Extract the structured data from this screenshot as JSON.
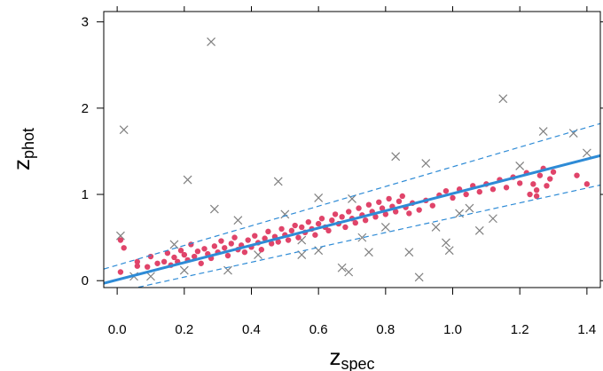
{
  "chart_data": {
    "type": "scatter",
    "title": "",
    "xlabel": {
      "main": "z",
      "sub": "spec"
    },
    "ylabel": {
      "main": "z",
      "sub": "phot"
    },
    "xlim": [
      -0.04,
      1.44
    ],
    "ylim": [
      -0.08,
      3.12
    ],
    "x_ticks": [
      0.0,
      0.2,
      0.4,
      0.6,
      0.8,
      1.0,
      1.2,
      1.4
    ],
    "x_tick_labels": [
      "0.0",
      "0.2",
      "0.4",
      "0.6",
      "0.8",
      "1.0",
      "1.2",
      "1.4"
    ],
    "y_ticks": [
      0,
      1,
      2,
      3
    ],
    "y_tick_labels": [
      "0",
      "1",
      "2",
      "3"
    ],
    "grid": false,
    "legend": "none",
    "colors": {
      "points": "#e0446a",
      "crosses": "#808080",
      "fit": "#2e8bd6"
    },
    "fit_line": {
      "intercept": 0.01,
      "slope": 1.0
    },
    "dashed_envelope": [
      {
        "intercept": 0.18,
        "slope": 1.14
      },
      {
        "intercept": -0.13,
        "slope": 0.86
      }
    ],
    "series": [
      {
        "marker": "circle",
        "points": [
          [
            0.01,
            0.47
          ],
          [
            0.02,
            0.38
          ],
          [
            0.01,
            0.1
          ],
          [
            0.06,
            0.22
          ],
          [
            0.06,
            0.17
          ],
          [
            0.09,
            0.16
          ],
          [
            0.1,
            0.28
          ],
          [
            0.12,
            0.2
          ],
          [
            0.14,
            0.22
          ],
          [
            0.15,
            0.32
          ],
          [
            0.16,
            0.18
          ],
          [
            0.17,
            0.27
          ],
          [
            0.18,
            0.22
          ],
          [
            0.19,
            0.35
          ],
          [
            0.2,
            0.3
          ],
          [
            0.21,
            0.24
          ],
          [
            0.22,
            0.42
          ],
          [
            0.23,
            0.28
          ],
          [
            0.24,
            0.34
          ],
          [
            0.25,
            0.2
          ],
          [
            0.26,
            0.37
          ],
          [
            0.27,
            0.31
          ],
          [
            0.28,
            0.26
          ],
          [
            0.29,
            0.4
          ],
          [
            0.3,
            0.33
          ],
          [
            0.31,
            0.46
          ],
          [
            0.32,
            0.38
          ],
          [
            0.33,
            0.29
          ],
          [
            0.34,
            0.43
          ],
          [
            0.35,
            0.5
          ],
          [
            0.36,
            0.36
          ],
          [
            0.37,
            0.41
          ],
          [
            0.38,
            0.33
          ],
          [
            0.39,
            0.47
          ],
          [
            0.4,
            0.39
          ],
          [
            0.41,
            0.52
          ],
          [
            0.42,
            0.44
          ],
          [
            0.43,
            0.36
          ],
          [
            0.44,
            0.49
          ],
          [
            0.45,
            0.57
          ],
          [
            0.46,
            0.43
          ],
          [
            0.47,
            0.51
          ],
          [
            0.48,
            0.45
          ],
          [
            0.49,
            0.6
          ],
          [
            0.5,
            0.53
          ],
          [
            0.51,
            0.47
          ],
          [
            0.52,
            0.58
          ],
          [
            0.53,
            0.64
          ],
          [
            0.54,
            0.5
          ],
          [
            0.55,
            0.62
          ],
          [
            0.56,
            0.56
          ],
          [
            0.57,
            0.68
          ],
          [
            0.58,
            0.6
          ],
          [
            0.59,
            0.53
          ],
          [
            0.6,
            0.66
          ],
          [
            0.61,
            0.72
          ],
          [
            0.62,
            0.62
          ],
          [
            0.63,
            0.58
          ],
          [
            0.64,
            0.7
          ],
          [
            0.65,
            0.77
          ],
          [
            0.66,
            0.66
          ],
          [
            0.67,
            0.74
          ],
          [
            0.68,
            0.62
          ],
          [
            0.69,
            0.8
          ],
          [
            0.7,
            0.72
          ],
          [
            0.71,
            0.67
          ],
          [
            0.72,
            0.84
          ],
          [
            0.73,
            0.76
          ],
          [
            0.74,
            0.7
          ],
          [
            0.75,
            0.88
          ],
          [
            0.76,
            0.8
          ],
          [
            0.77,
            0.74
          ],
          [
            0.78,
            0.91
          ],
          [
            0.79,
            0.84
          ],
          [
            0.8,
            0.77
          ],
          [
            0.81,
            0.95
          ],
          [
            0.82,
            0.86
          ],
          [
            0.83,
            0.8
          ],
          [
            0.84,
            0.92
          ],
          [
            0.85,
            0.98
          ],
          [
            0.86,
            0.85
          ],
          [
            0.87,
            0.78
          ],
          [
            0.88,
            0.9
          ],
          [
            0.9,
            0.82
          ],
          [
            0.92,
            0.93
          ],
          [
            0.94,
            0.87
          ],
          [
            0.96,
            0.99
          ],
          [
            0.98,
            1.04
          ],
          [
            1.0,
            0.96
          ],
          [
            1.02,
            1.06
          ],
          [
            1.04,
            1.0
          ],
          [
            1.06,
            1.1
          ],
          [
            1.08,
            1.03
          ],
          [
            1.1,
            1.12
          ],
          [
            1.12,
            1.06
          ],
          [
            1.14,
            1.17
          ],
          [
            1.16,
            1.08
          ],
          [
            1.18,
            1.2
          ],
          [
            1.2,
            1.13
          ],
          [
            1.22,
            1.25
          ],
          [
            1.24,
            1.12
          ],
          [
            1.25,
            0.98
          ],
          [
            1.26,
            1.22
          ],
          [
            1.27,
            1.3
          ],
          [
            1.28,
            1.1
          ],
          [
            1.29,
            1.18
          ],
          [
            1.3,
            1.26
          ],
          [
            1.37,
            1.22
          ],
          [
            1.4,
            1.12
          ],
          [
            1.25,
            1.05
          ],
          [
            1.23,
            1.0
          ]
        ]
      },
      {
        "marker": "cross",
        "points": [
          [
            0.01,
            0.52
          ],
          [
            0.02,
            1.75
          ],
          [
            0.28,
            2.77
          ],
          [
            0.21,
            1.17
          ],
          [
            0.48,
            1.15
          ],
          [
            0.29,
            0.83
          ],
          [
            0.36,
            0.7
          ],
          [
            0.55,
            0.47
          ],
          [
            0.67,
            0.15
          ],
          [
            0.69,
            0.1
          ],
          [
            0.75,
            0.33
          ],
          [
            0.83,
            1.44
          ],
          [
            0.87,
            0.33
          ],
          [
            0.9,
            0.04
          ],
          [
            0.92,
            1.36
          ],
          [
            0.98,
            0.44
          ],
          [
            0.99,
            0.35
          ],
          [
            1.15,
            2.11
          ],
          [
            1.27,
            1.73
          ],
          [
            1.36,
            1.71
          ],
          [
            1.4,
            1.48
          ],
          [
            1.2,
            1.33
          ],
          [
            1.08,
            0.58
          ],
          [
            1.12,
            0.72
          ],
          [
            0.6,
            0.35
          ],
          [
            0.42,
            0.3
          ],
          [
            0.33,
            0.12
          ],
          [
            0.2,
            0.12
          ],
          [
            0.1,
            0.05
          ],
          [
            0.6,
            0.96
          ],
          [
            0.95,
            0.62
          ],
          [
            1.05,
            0.84
          ],
          [
            0.55,
            0.3
          ],
          [
            0.73,
            0.5
          ],
          [
            0.8,
            0.62
          ],
          [
            0.05,
            0.05
          ],
          [
            0.17,
            0.42
          ],
          [
            0.7,
            0.95
          ],
          [
            0.5,
            0.77
          ],
          [
            1.02,
            0.78
          ]
        ]
      }
    ]
  }
}
